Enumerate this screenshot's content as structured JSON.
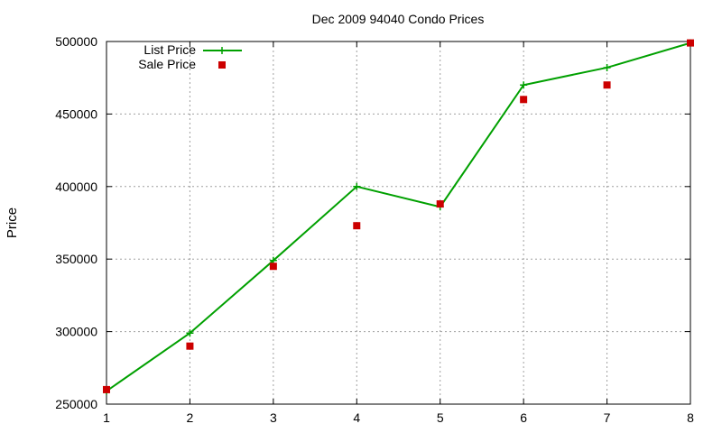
{
  "chart_data": {
    "type": "line",
    "title": "Dec 2009 94040 Condo Prices",
    "xlabel": "",
    "ylabel": "Price",
    "x": [
      1,
      2,
      3,
      4,
      5,
      6,
      7,
      8
    ],
    "xlim": [
      1,
      8
    ],
    "ylim": [
      250000,
      500000
    ],
    "xticks": [
      1,
      2,
      3,
      4,
      5,
      6,
      7,
      8
    ],
    "yticks": [
      250000,
      300000,
      350000,
      400000,
      450000,
      500000
    ],
    "grid": true,
    "legend_position": "top-left",
    "series": [
      {
        "name": "List Price",
        "style": "line-with-plus-markers",
        "color": "#00a000",
        "values": [
          259000,
          299000,
          349000,
          400000,
          386000,
          470000,
          482000,
          499000
        ]
      },
      {
        "name": "Sale Price",
        "style": "square-markers",
        "color": "#cc0000",
        "values": [
          260000,
          290000,
          345000,
          373000,
          388000,
          460000,
          470000,
          499000
        ]
      }
    ]
  }
}
